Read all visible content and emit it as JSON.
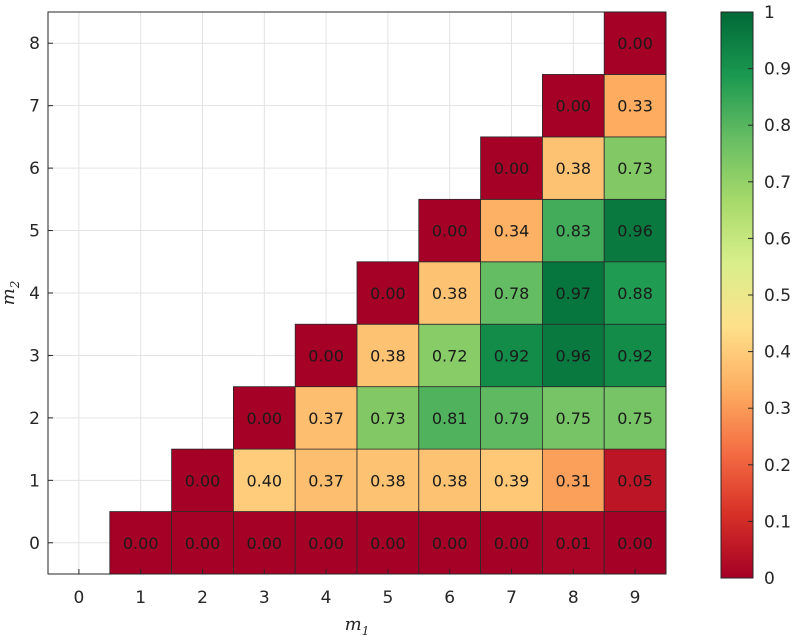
{
  "chart_data": {
    "type": "heatmap",
    "title": "",
    "xlabel": "m",
    "xlabel_sub": "1",
    "ylabel": "m",
    "ylabel_sub": "2",
    "x_ticks": [
      0,
      1,
      2,
      3,
      4,
      5,
      6,
      7,
      8,
      9
    ],
    "y_ticks": [
      0,
      1,
      2,
      3,
      4,
      5,
      6,
      7,
      8
    ],
    "xlim": [
      -0.5,
      9.5
    ],
    "ylim": [
      -0.5,
      8.5
    ],
    "grid": true,
    "colormap": "red-yellow-green",
    "colorscale": [
      "#a50026",
      "#d73027",
      "#f46d43",
      "#fdae61",
      "#fee08b",
      "#d9ef8b",
      "#a6d96a",
      "#66bd63",
      "#1a9850",
      "#006837"
    ],
    "colorbar": {
      "min": 0,
      "max": 1,
      "ticks": [
        "0",
        "0.1",
        "0.2",
        "0.3",
        "0.4",
        "0.5",
        "0.6",
        "0.7",
        "0.8",
        "0.9",
        "1"
      ]
    },
    "cells": [
      {
        "m1": 1,
        "m2": 0,
        "value": 0.0,
        "label": "0.00"
      },
      {
        "m1": 2,
        "m2": 0,
        "value": 0.0,
        "label": "0.00"
      },
      {
        "m1": 3,
        "m2": 0,
        "value": 0.0,
        "label": "0.00"
      },
      {
        "m1": 4,
        "m2": 0,
        "value": 0.0,
        "label": "0.00"
      },
      {
        "m1": 5,
        "m2": 0,
        "value": 0.0,
        "label": "0.00"
      },
      {
        "m1": 6,
        "m2": 0,
        "value": 0.0,
        "label": "0.00"
      },
      {
        "m1": 7,
        "m2": 0,
        "value": 0.0,
        "label": "0.00"
      },
      {
        "m1": 8,
        "m2": 0,
        "value": 0.01,
        "label": "0.01"
      },
      {
        "m1": 9,
        "m2": 0,
        "value": 0.0,
        "label": "0.00"
      },
      {
        "m1": 2,
        "m2": 1,
        "value": 0.0,
        "label": "0.00"
      },
      {
        "m1": 3,
        "m2": 1,
        "value": 0.4,
        "label": "0.40"
      },
      {
        "m1": 4,
        "m2": 1,
        "value": 0.37,
        "label": "0.37"
      },
      {
        "m1": 5,
        "m2": 1,
        "value": 0.38,
        "label": "0.38"
      },
      {
        "m1": 6,
        "m2": 1,
        "value": 0.38,
        "label": "0.38"
      },
      {
        "m1": 7,
        "m2": 1,
        "value": 0.39,
        "label": "0.39"
      },
      {
        "m1": 8,
        "m2": 1,
        "value": 0.31,
        "label": "0.31"
      },
      {
        "m1": 9,
        "m2": 1,
        "value": 0.05,
        "label": "0.05"
      },
      {
        "m1": 3,
        "m2": 2,
        "value": 0.0,
        "label": "0.00"
      },
      {
        "m1": 4,
        "m2": 2,
        "value": 0.37,
        "label": "0.37"
      },
      {
        "m1": 5,
        "m2": 2,
        "value": 0.73,
        "label": "0.73"
      },
      {
        "m1": 6,
        "m2": 2,
        "value": 0.81,
        "label": "0.81"
      },
      {
        "m1": 7,
        "m2": 2,
        "value": 0.79,
        "label": "0.79"
      },
      {
        "m1": 8,
        "m2": 2,
        "value": 0.75,
        "label": "0.75"
      },
      {
        "m1": 9,
        "m2": 2,
        "value": 0.75,
        "label": "0.75"
      },
      {
        "m1": 4,
        "m2": 3,
        "value": 0.0,
        "label": "0.00"
      },
      {
        "m1": 5,
        "m2": 3,
        "value": 0.38,
        "label": "0.38"
      },
      {
        "m1": 6,
        "m2": 3,
        "value": 0.72,
        "label": "0.72"
      },
      {
        "m1": 7,
        "m2": 3,
        "value": 0.92,
        "label": "0.92"
      },
      {
        "m1": 8,
        "m2": 3,
        "value": 0.96,
        "label": "0.96"
      },
      {
        "m1": 9,
        "m2": 3,
        "value": 0.92,
        "label": "0.92"
      },
      {
        "m1": 5,
        "m2": 4,
        "value": 0.0,
        "label": "0.00"
      },
      {
        "m1": 6,
        "m2": 4,
        "value": 0.38,
        "label": "0.38"
      },
      {
        "m1": 7,
        "m2": 4,
        "value": 0.78,
        "label": "0.78"
      },
      {
        "m1": 8,
        "m2": 4,
        "value": 0.97,
        "label": "0.97"
      },
      {
        "m1": 9,
        "m2": 4,
        "value": 0.88,
        "label": "0.88"
      },
      {
        "m1": 6,
        "m2": 5,
        "value": 0.0,
        "label": "0.00"
      },
      {
        "m1": 7,
        "m2": 5,
        "value": 0.34,
        "label": "0.34"
      },
      {
        "m1": 8,
        "m2": 5,
        "value": 0.83,
        "label": "0.83"
      },
      {
        "m1": 9,
        "m2": 5,
        "value": 0.96,
        "label": "0.96"
      },
      {
        "m1": 7,
        "m2": 6,
        "value": 0.0,
        "label": "0.00"
      },
      {
        "m1": 8,
        "m2": 6,
        "value": 0.38,
        "label": "0.38"
      },
      {
        "m1": 9,
        "m2": 6,
        "value": 0.73,
        "label": "0.73"
      },
      {
        "m1": 8,
        "m2": 7,
        "value": 0.0,
        "label": "0.00"
      },
      {
        "m1": 9,
        "m2": 7,
        "value": 0.33,
        "label": "0.33"
      },
      {
        "m1": 9,
        "m2": 8,
        "value": 0.0,
        "label": "0.00"
      }
    ]
  }
}
